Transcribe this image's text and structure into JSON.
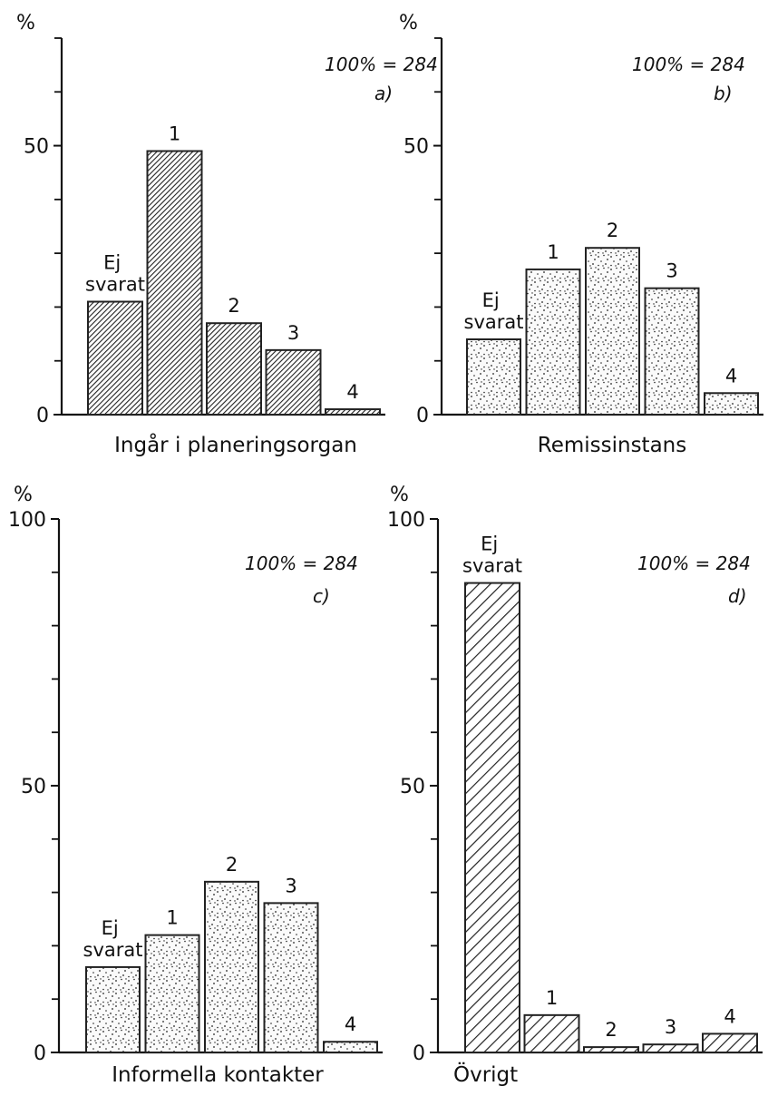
{
  "chart_data": [
    {
      "type": "bar",
      "panel_label": "a)",
      "annotation": "100% = 284",
      "y_label": "%",
      "x_title": "Ingår i planeringsorgan",
      "categories": [
        "Ej svarat",
        "1",
        "2",
        "3",
        "4"
      ],
      "values": [
        21,
        49,
        17,
        12,
        1
      ],
      "ylim": [
        0,
        70
      ],
      "yticks": [
        0,
        50
      ],
      "minor_yticks": [
        10,
        20,
        30,
        40,
        60,
        70
      ],
      "pattern": "dense-hatch",
      "color": "#222222"
    },
    {
      "type": "bar",
      "panel_label": "b)",
      "annotation": "100% = 284",
      "y_label": "%",
      "x_title": "Remissinstans",
      "categories": [
        "Ej svarat",
        "1",
        "2",
        "3",
        "4"
      ],
      "values": [
        14,
        27,
        31,
        23.5,
        4
      ],
      "ylim": [
        0,
        70
      ],
      "yticks": [
        0,
        50
      ],
      "minor_yticks": [
        10,
        20,
        30,
        40,
        60,
        70
      ],
      "pattern": "stipple",
      "color": "#222222"
    },
    {
      "type": "bar",
      "panel_label": "c)",
      "annotation": "100% = 284",
      "y_label": "%",
      "x_title": "Informella kontakter",
      "categories": [
        "Ej svarat",
        "1",
        "2",
        "3",
        "4"
      ],
      "values": [
        16,
        22,
        32,
        28,
        2
      ],
      "ylim": [
        0,
        100
      ],
      "yticks": [
        0,
        50,
        100
      ],
      "minor_yticks": [
        10,
        20,
        30,
        40,
        60,
        70,
        80,
        90
      ],
      "pattern": "stipple",
      "color": "#222222"
    },
    {
      "type": "bar",
      "panel_label": "d)",
      "annotation": "100% = 284",
      "y_label": "%",
      "x_title": "Övrigt",
      "categories": [
        "Ej svarat",
        "1",
        "2",
        "3",
        "4"
      ],
      "values": [
        88,
        7,
        1,
        1.5,
        3.5
      ],
      "ylim": [
        0,
        100
      ],
      "yticks": [
        0,
        50,
        100
      ],
      "minor_yticks": [
        10,
        20,
        30,
        40,
        60,
        70,
        80,
        90
      ],
      "pattern": "hatch",
      "color": "#222222"
    }
  ]
}
